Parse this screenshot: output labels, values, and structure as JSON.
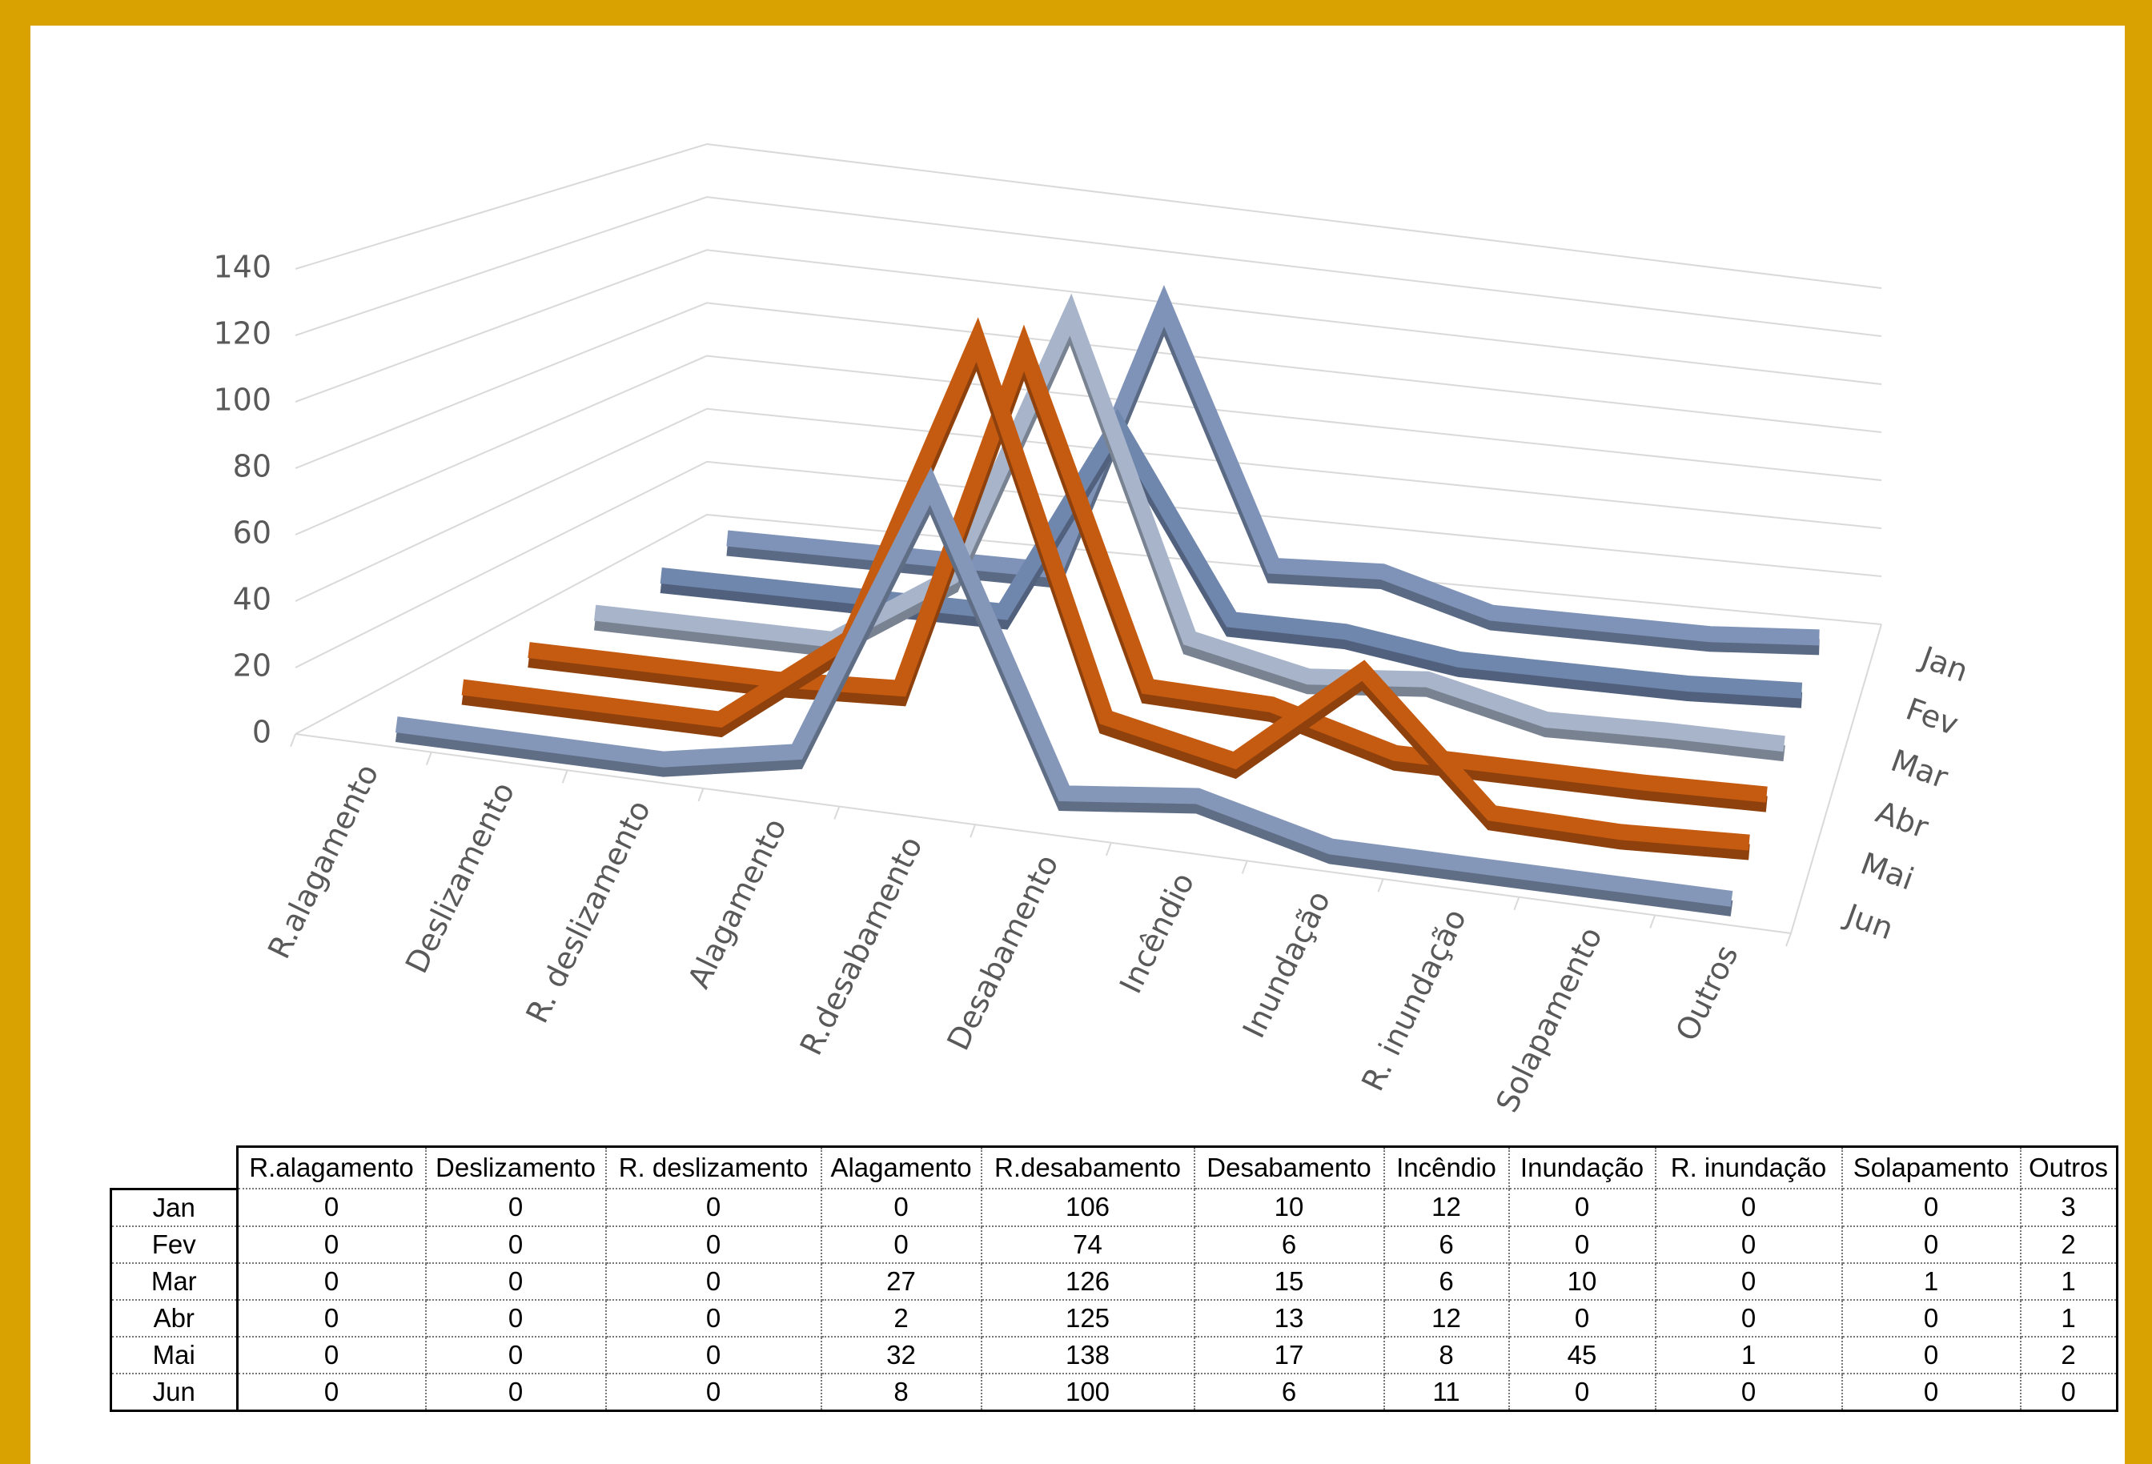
{
  "chart_data": {
    "type": "line",
    "categories": [
      "R.alagamento",
      "Deslizamento",
      "R. deslizamento",
      "Alagamento",
      "R.desabamento",
      "Desabamento",
      "Incêndio",
      "Inundação",
      "R. inundação",
      "Solapamento",
      "Outros"
    ],
    "series": [
      {
        "name": "Jan",
        "color": "#7f93b8",
        "values": [
          0,
          0,
          0,
          0,
          106,
          10,
          12,
          0,
          0,
          0,
          3
        ]
      },
      {
        "name": "Fev",
        "color": "#6f86ad",
        "values": [
          0,
          0,
          0,
          0,
          74,
          6,
          6,
          0,
          0,
          0,
          2
        ]
      },
      {
        "name": "Mar",
        "color": "#a7b4ca",
        "values": [
          0,
          0,
          0,
          27,
          126,
          15,
          6,
          10,
          0,
          1,
          1
        ]
      },
      {
        "name": "Abr",
        "color": "#c55a11",
        "values": [
          0,
          0,
          0,
          2,
          125,
          13,
          12,
          0,
          0,
          0,
          1
        ]
      },
      {
        "name": "Mai",
        "color": "#c55a11",
        "values": [
          0,
          0,
          0,
          32,
          138,
          17,
          8,
          45,
          1,
          0,
          2
        ]
      },
      {
        "name": "Jun",
        "color": "#8497b9",
        "values": [
          0,
          0,
          0,
          8,
          100,
          6,
          11,
          0,
          0,
          0,
          0
        ]
      }
    ],
    "ylim": [
      0,
      140
    ],
    "yticks": [
      0,
      20,
      40,
      60,
      80,
      100,
      120,
      140
    ],
    "grid": true
  }
}
